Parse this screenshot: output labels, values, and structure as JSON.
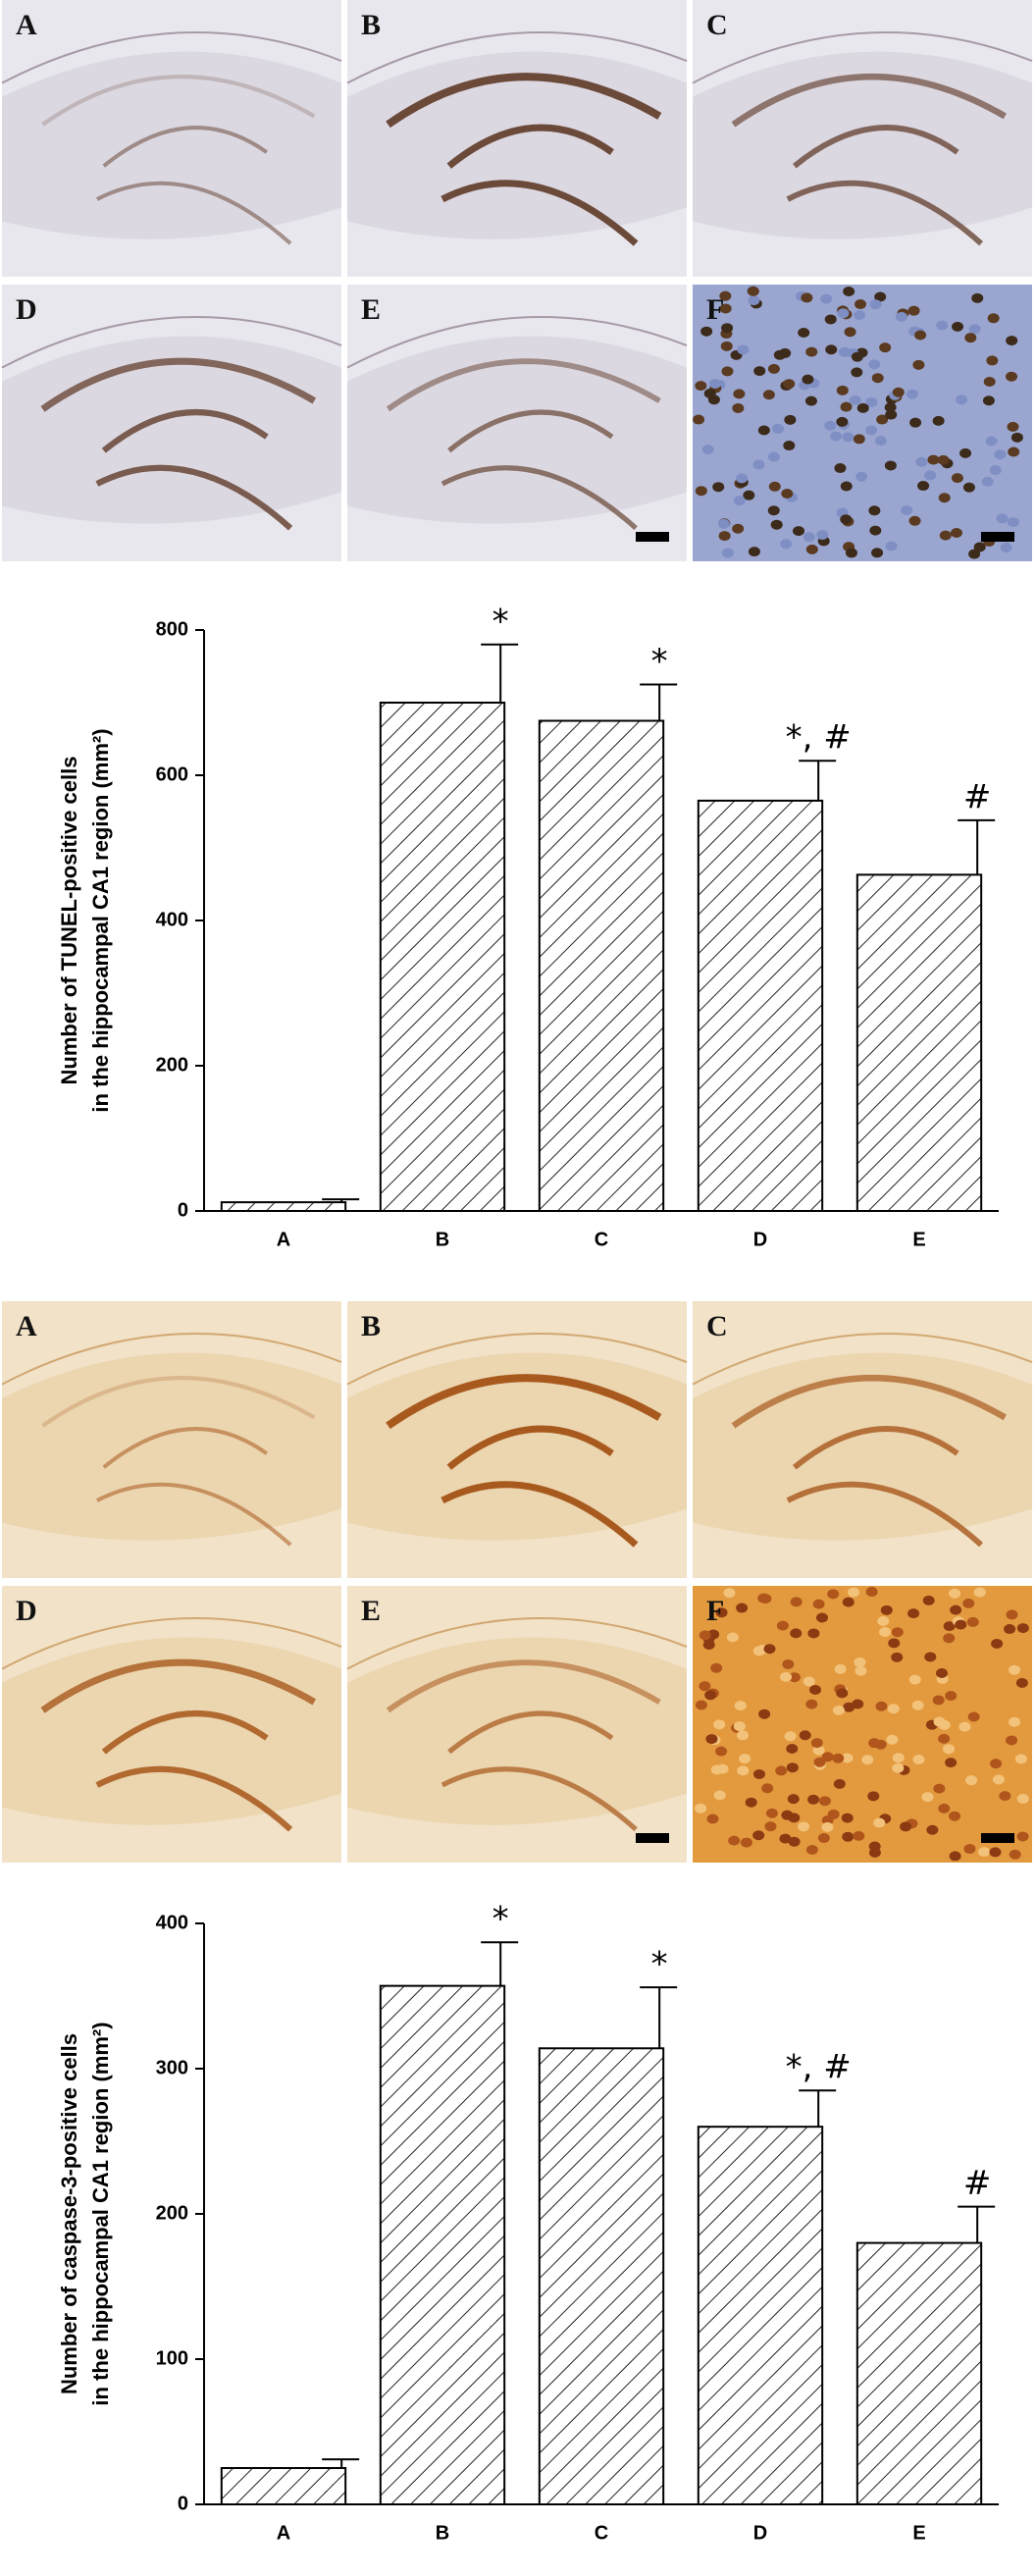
{
  "micrographs": [
    {
      "labels": [
        "A",
        "B",
        "C",
        "D",
        "E",
        "F"
      ]
    },
    {
      "labels": [
        "A",
        "B",
        "C",
        "D",
        "E",
        "F"
      ]
    }
  ],
  "chart_data": [
    {
      "type": "bar",
      "ylabel": [
        "Number of TUNEL-positive cells",
        "in the hippocampal CA1 region (mm²)"
      ],
      "categories": [
        "A",
        "B",
        "C",
        "D",
        "E"
      ],
      "values": [
        12,
        700,
        675,
        565,
        463
      ],
      "errors": [
        4,
        80,
        50,
        55,
        75
      ],
      "annotations": [
        null,
        "*",
        "*",
        "*, #",
        "#"
      ],
      "color": "#222222",
      "ylim": [
        0,
        800
      ],
      "yticks": [
        0,
        200,
        400,
        600,
        800
      ]
    },
    {
      "type": "bar",
      "ylabel": [
        "Number of caspase-3-positive cells",
        "in the hippocampal CA1 region (mm²)"
      ],
      "categories": [
        "A",
        "B",
        "C",
        "D",
        "E"
      ],
      "values": [
        25,
        357,
        314,
        260,
        180
      ],
      "errors": [
        6,
        30,
        42,
        25,
        25
      ],
      "annotations": [
        null,
        "*",
        "*",
        "*, #",
        "#"
      ],
      "color": "#222222",
      "ylim": [
        0,
        400
      ],
      "yticks": [
        0,
        100,
        200,
        300,
        400
      ]
    }
  ]
}
